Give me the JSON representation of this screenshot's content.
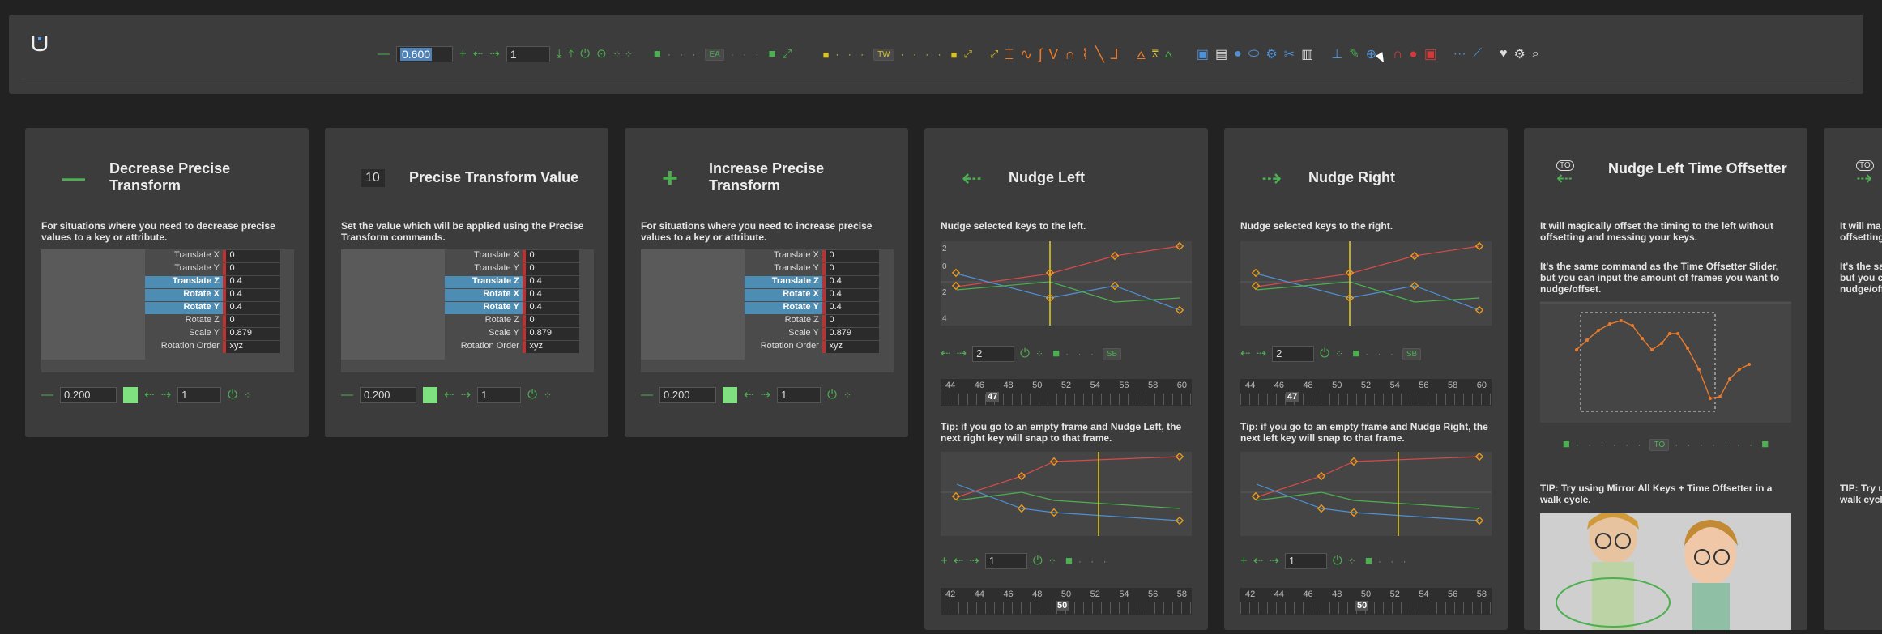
{
  "toolbar": {
    "value1": "0.600",
    "value2": "1",
    "badge_ea": "EA",
    "badge_tw": "TW"
  },
  "cards": [
    {
      "icon_text": "—",
      "title": "Decrease Precise Transform",
      "desc": "For situations where you need to decrease precise values to a key or attribute.",
      "ctrl_value": "0.200",
      "ctrl_count": "1"
    },
    {
      "icon_text": "10",
      "title": "Precise Transform Value",
      "desc": "Set the value which will be applied using the Precise Transform commands.",
      "ctrl_value": "0.200",
      "ctrl_count": "1"
    },
    {
      "icon_text": "+",
      "title": "Increase Precise Transform",
      "desc": "For situations where you need to increase precise values to a key or attribute.",
      "ctrl_value": "0.200",
      "ctrl_count": "1"
    }
  ],
  "attributes": [
    {
      "name": "Translate X",
      "value": "0",
      "highlight": false
    },
    {
      "name": "Translate Y",
      "value": "0",
      "highlight": false
    },
    {
      "name": "Translate Z",
      "value": "0.4",
      "highlight": true
    },
    {
      "name": "Rotate X",
      "value": "0.4",
      "highlight": true
    },
    {
      "name": "Rotate Y",
      "value": "0.4",
      "highlight": true
    },
    {
      "name": "Rotate Z",
      "value": "0",
      "highlight": false
    },
    {
      "name": "Scale Y",
      "value": "0.879",
      "highlight": false
    },
    {
      "name": "Rotation Order",
      "value": "xyz",
      "highlight": false
    }
  ],
  "nudge_left": {
    "title": "Nudge Left",
    "desc": "Nudge selected keys to the left.",
    "field": "2",
    "badge": "SB",
    "ruler": [
      "44",
      "46",
      "48",
      "50",
      "52",
      "54",
      "56",
      "58",
      "60"
    ],
    "ruler_current": "47",
    "tip": "Tip: if you go to an empty frame and Nudge Left, the next right key will snap to that frame.",
    "field2": "1",
    "ruler2": [
      "42",
      "44",
      "46",
      "48",
      "50",
      "52",
      "54",
      "56",
      "58"
    ],
    "ruler2_current": "50"
  },
  "nudge_right": {
    "title": "Nudge Right",
    "desc": "Nudge selected keys to the right.",
    "field": "2",
    "badge": "SB",
    "ruler": [
      "44",
      "46",
      "48",
      "50",
      "52",
      "54",
      "56",
      "58",
      "60"
    ],
    "ruler_current": "47",
    "tip": "Tip: if you go to an empty frame and Nudge Right, the next left key will snap to that frame.",
    "field2": "1",
    "ruler2": [
      "42",
      "44",
      "46",
      "48",
      "50",
      "52",
      "54",
      "56",
      "58"
    ],
    "ruler2_current": "50"
  },
  "time_offsetter": {
    "icon_label": "TO",
    "title": "Nudge Left Time Offsetter",
    "desc": "It will magically offset the timing to the left without offsetting and messing your keys.",
    "desc2": "It's the same command as the Time Offsetter Slider, but you can input the amount of frames you want to nudge/offset.",
    "badge": "TO",
    "tip": "TIP: Try using Mirror All Keys + Time Offsetter in a walk cycle."
  },
  "partial_card": {
    "icon_label": "TO",
    "line1": "It will ma",
    "line1b": "offsetting",
    "line2": "It's the sa",
    "line2b": "but you ca",
    "line2c": "nudge/off",
    "tip": "TIP: Try u",
    "tipb": "walk cycle"
  },
  "graph_labels": [
    "2",
    "0",
    "2",
    "4"
  ],
  "colors": {
    "background": "#222222",
    "panel": "#3c3c3c",
    "accent_green": "#4caf50",
    "key_orange": "#e89a1a",
    "highlight_blue": "#4e8db3",
    "curve_red": "#d84a4a",
    "time_yellow": "#e4d020"
  }
}
